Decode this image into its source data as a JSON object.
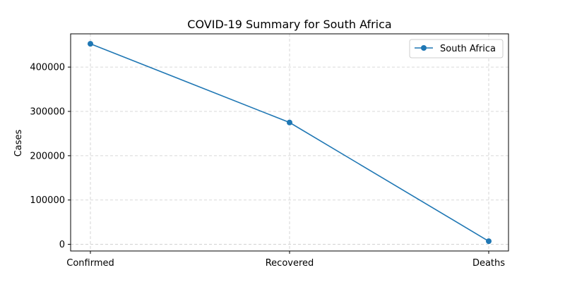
{
  "chart_data": {
    "type": "line",
    "title": "COVID-19 Summary for South Africa",
    "xlabel": "",
    "ylabel": "Cases",
    "categories": [
      "Confirmed",
      "Recovered",
      "Deaths"
    ],
    "series": [
      {
        "name": "South Africa",
        "values": [
          452529,
          274925,
          7067
        ],
        "color": "#1f77b4"
      }
    ],
    "ylim": [
      -15000,
      475000
    ],
    "yticks": [
      0,
      100000,
      200000,
      300000,
      400000
    ],
    "ytick_labels": [
      "0",
      "100000",
      "200000",
      "300000",
      "400000"
    ],
    "grid": true,
    "legend_position": "top-right"
  }
}
